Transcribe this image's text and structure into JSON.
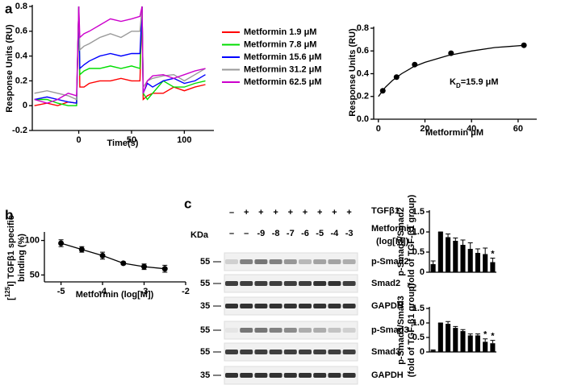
{
  "chart_data": [
    {
      "type": "line",
      "panel": "a",
      "xlabel": "Time(s)",
      "ylabel": "Response Units (RU)",
      "x": [
        -42,
        -30,
        -20,
        -10,
        -2,
        0,
        1,
        5,
        10,
        20,
        30,
        40,
        50,
        58,
        60,
        61,
        65,
        70,
        80,
        90,
        100,
        110,
        120
      ],
      "series": [
        {
          "name": "Metformin 1.9 μM",
          "color": "#ff0000",
          "values": [
            0.0,
            0.02,
            0.0,
            0.03,
            0.02,
            0.8,
            0.15,
            0.15,
            0.18,
            0.2,
            0.2,
            0.22,
            0.2,
            0.2,
            0.8,
            0.05,
            0.08,
            0.1,
            0.1,
            0.15,
            0.12,
            0.15,
            0.17
          ]
        },
        {
          "name": "Metformin 7.8 μM",
          "color": "#00dd00",
          "values": [
            0.05,
            0.05,
            0.02,
            0.0,
            0.0,
            0.8,
            0.25,
            0.28,
            0.3,
            0.3,
            0.32,
            0.3,
            0.32,
            0.3,
            0.8,
            0.1,
            0.05,
            0.1,
            0.2,
            0.15,
            0.15,
            0.18,
            0.2
          ]
        },
        {
          "name": "Metformin 15.6 μM",
          "color": "#0000ff",
          "values": [
            0.05,
            0.07,
            0.05,
            0.03,
            0.02,
            0.8,
            0.3,
            0.33,
            0.36,
            0.4,
            0.42,
            0.4,
            0.42,
            0.42,
            0.8,
            0.1,
            0.18,
            0.15,
            0.2,
            0.22,
            0.18,
            0.2,
            0.25
          ]
        },
        {
          "name": "Metformin 31.2 μM",
          "color": "#999999",
          "values": [
            0.1,
            0.12,
            0.1,
            0.08,
            0.05,
            0.8,
            0.45,
            0.48,
            0.5,
            0.55,
            0.58,
            0.55,
            0.6,
            0.6,
            0.8,
            0.15,
            0.2,
            0.22,
            0.24,
            0.25,
            0.2,
            0.25,
            0.3
          ]
        },
        {
          "name": "Metformin 62.5 μM",
          "color": "#cc00cc",
          "values": [
            0.05,
            0.02,
            0.05,
            0.1,
            0.08,
            0.8,
            0.55,
            0.58,
            0.6,
            0.65,
            0.7,
            0.68,
            0.7,
            0.72,
            0.8,
            0.1,
            0.2,
            0.24,
            0.25,
            0.22,
            0.25,
            0.28,
            0.3
          ]
        }
      ],
      "xlim": [
        -44,
        128
      ],
      "xticks": [
        0,
        50,
        100
      ],
      "ylim": [
        -0.2,
        0.8
      ],
      "yticks": [
        -0.2,
        0,
        0.2,
        0.4,
        0.6,
        0.8
      ]
    },
    {
      "type": "scatter",
      "xlabel": "Metformin μM",
      "ylabel": "Response Units (RU)",
      "annotation": [
        "K",
        "D",
        "=15.9 μM"
      ],
      "x": [
        1.9,
        7.8,
        15.6,
        31.2,
        62.5
      ],
      "values": [
        0.25,
        0.37,
        0.48,
        0.58,
        0.65
      ],
      "color": "#000000",
      "fit": {
        "x": [
          0,
          3,
          6,
          10,
          15,
          20,
          30,
          40,
          50,
          63
        ],
        "values": [
          0.2,
          0.28,
          0.34,
          0.4,
          0.46,
          0.5,
          0.56,
          0.6,
          0.63,
          0.65
        ]
      },
      "xlim": [
        -2,
        68
      ],
      "xticks": [
        0,
        20,
        40,
        60
      ],
      "ylim": [
        0,
        0.8
      ],
      "yticks": [
        {
          "value": 0,
          "label": "0.0"
        },
        0.2,
        0.4,
        0.6,
        0.8
      ]
    },
    {
      "type": "errorline",
      "panel": "b",
      "xlabel": "Metformin (log[M])",
      "ylabel": [
        "[",
        "125",
        "I] TGFβ1 specific"
      ],
      "ylabel2": "binding (%)",
      "x": [
        -5,
        -4.5,
        -4,
        -3.5,
        -3,
        -2.5
      ],
      "values": [
        96,
        87,
        78,
        67,
        62,
        59
      ],
      "errors": [
        5,
        4,
        5,
        2,
        4,
        5
      ],
      "color": "#000000",
      "xlim": [
        -5.4,
        -2
      ],
      "xticks": [
        -5,
        -4,
        -3,
        -2
      ],
      "ylim": [
        40,
        110
      ],
      "yticks": [
        50,
        100
      ]
    },
    {
      "type": "bar",
      "ylabel": "p-Smad2/Smad2",
      "ylabel2": "(fold of TGF-β1 group)",
      "categories": [
        null,
        null,
        null,
        null,
        null,
        null,
        null,
        null,
        null
      ],
      "values": [
        0.2,
        1.0,
        0.87,
        0.78,
        0.68,
        0.58,
        0.48,
        0.45,
        0.25
      ],
      "errors": [
        0.08,
        0,
        0.08,
        0.07,
        0.12,
        0.15,
        0.1,
        0.15,
        0.1
      ],
      "markers": [
        null,
        null,
        null,
        null,
        null,
        null,
        null,
        null,
        "*"
      ],
      "color": "#000000",
      "ylim": [
        0,
        1.5
      ],
      "yticks": [
        0,
        0.5,
        {
          "value": 1,
          "label": "1.0"
        },
        1.5
      ]
    },
    {
      "type": "bar",
      "ylabel": "p-Smad3/Smad3",
      "ylabel2": "(fold of TGF-β1 group)",
      "categories": [
        null,
        null,
        null,
        null,
        null,
        null,
        null,
        null,
        null
      ],
      "values": [
        0.05,
        1.0,
        0.97,
        0.83,
        0.72,
        0.57,
        0.57,
        0.35,
        0.3
      ],
      "errors": [
        0.02,
        0,
        0.08,
        0.05,
        0.05,
        0.05,
        0.05,
        0.1,
        0.1
      ],
      "markers": [
        null,
        null,
        null,
        null,
        null,
        null,
        null,
        "*",
        "*"
      ],
      "color": "#000000",
      "ylim": [
        0,
        1.5
      ],
      "yticks": [
        0,
        0.5,
        {
          "value": 1,
          "label": "1.0"
        },
        1.5
      ]
    }
  ],
  "blot": {
    "panel": "c",
    "treatment": "TGFβ1",
    "signs": [
      "–",
      "+",
      "+",
      "+",
      "+",
      "+",
      "+",
      "+",
      "+"
    ],
    "drug": "Metformin",
    "drug_unit": "(log[M])",
    "doses": [
      "–",
      "–",
      "-9",
      "-8",
      "-7",
      "-6",
      "-5",
      "-4",
      "-3"
    ],
    "kda_title": "KDa",
    "rows": [
      {
        "kda": "55",
        "label": "p-Smad2"
      },
      {
        "kda": "55",
        "label": "Smad2"
      },
      {
        "kda": "35",
        "label": "GAPDH"
      },
      {
        "kda": "55",
        "label": "p-Smad3"
      },
      {
        "kda": "55",
        "label": "Smad3"
      },
      {
        "kda": "35",
        "label": "GAPDH"
      }
    ]
  }
}
